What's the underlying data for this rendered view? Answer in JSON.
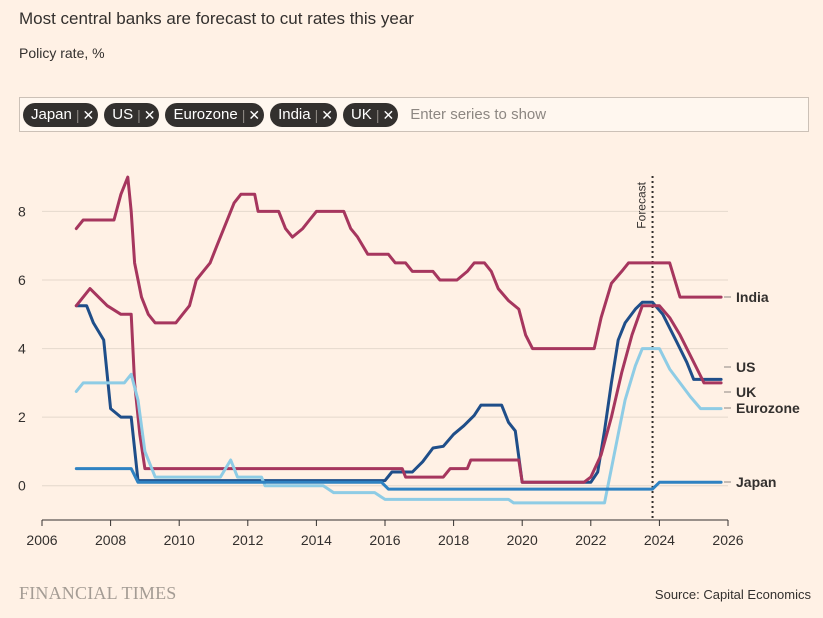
{
  "header": {
    "title": "Most central banks are forecast to cut rates this year",
    "subtitle": "Policy rate, %"
  },
  "selector": {
    "chips": [
      {
        "label": "Japan"
      },
      {
        "label": "US"
      },
      {
        "label": "Eurozone"
      },
      {
        "label": "India"
      },
      {
        "label": "UK"
      }
    ],
    "remove_glyph": "✕",
    "placeholder": "Enter series to show"
  },
  "footer": {
    "brand": "FINANCIAL TIMES",
    "source": "Source: Capital Economics"
  },
  "chart_data": {
    "type": "line",
    "title": "Most central banks are forecast to cut rates this year",
    "ylabel": "Policy rate, %",
    "xlim": [
      2006,
      2026
    ],
    "ylim": [
      -1,
      9.5
    ],
    "x_ticks": [
      2006,
      2008,
      2010,
      2012,
      2014,
      2016,
      2018,
      2020,
      2022,
      2024,
      2026
    ],
    "y_ticks": [
      0,
      2,
      4,
      6,
      8
    ],
    "grid": "horizontal",
    "annotation": {
      "label": "Forecast",
      "x": 2023.8
    },
    "series": [
      {
        "name": "India",
        "label": "India",
        "color": "#a6365e",
        "points": [
          [
            2007.0,
            7.5
          ],
          [
            2007.2,
            7.75
          ],
          [
            2007.5,
            7.75
          ],
          [
            2008.1,
            7.75
          ],
          [
            2008.3,
            8.5
          ],
          [
            2008.5,
            9.0
          ],
          [
            2008.6,
            8.0
          ],
          [
            2008.7,
            6.5
          ],
          [
            2008.9,
            5.5
          ],
          [
            2009.1,
            5.0
          ],
          [
            2009.3,
            4.75
          ],
          [
            2009.9,
            4.75
          ],
          [
            2010.1,
            5.0
          ],
          [
            2010.3,
            5.25
          ],
          [
            2010.5,
            6.0
          ],
          [
            2010.7,
            6.25
          ],
          [
            2010.9,
            6.5
          ],
          [
            2011.1,
            7.0
          ],
          [
            2011.3,
            7.5
          ],
          [
            2011.6,
            8.25
          ],
          [
            2011.8,
            8.5
          ],
          [
            2012.2,
            8.5
          ],
          [
            2012.3,
            8.0
          ],
          [
            2012.9,
            8.0
          ],
          [
            2013.1,
            7.5
          ],
          [
            2013.3,
            7.25
          ],
          [
            2013.6,
            7.5
          ],
          [
            2013.8,
            7.75
          ],
          [
            2014.0,
            8.0
          ],
          [
            2014.8,
            8.0
          ],
          [
            2015.0,
            7.5
          ],
          [
            2015.2,
            7.25
          ],
          [
            2015.5,
            6.75
          ],
          [
            2016.1,
            6.75
          ],
          [
            2016.3,
            6.5
          ],
          [
            2016.6,
            6.5
          ],
          [
            2016.8,
            6.25
          ],
          [
            2017.4,
            6.25
          ],
          [
            2017.6,
            6.0
          ],
          [
            2018.1,
            6.0
          ],
          [
            2018.4,
            6.25
          ],
          [
            2018.6,
            6.5
          ],
          [
            2018.9,
            6.5
          ],
          [
            2019.1,
            6.25
          ],
          [
            2019.3,
            5.75
          ],
          [
            2019.6,
            5.4
          ],
          [
            2019.9,
            5.15
          ],
          [
            2020.1,
            4.4
          ],
          [
            2020.3,
            4.0
          ],
          [
            2022.1,
            4.0
          ],
          [
            2022.3,
            4.9
          ],
          [
            2022.6,
            5.9
          ],
          [
            2022.9,
            6.25
          ],
          [
            2023.1,
            6.5
          ],
          [
            2024.3,
            6.5
          ],
          [
            2024.6,
            5.5
          ],
          [
            2025.8,
            5.5
          ]
        ]
      },
      {
        "name": "US",
        "label": "US",
        "color": "#1f4e89",
        "points": [
          [
            2007.0,
            5.25
          ],
          [
            2007.3,
            5.25
          ],
          [
            2007.5,
            4.75
          ],
          [
            2007.8,
            4.25
          ],
          [
            2008.0,
            2.25
          ],
          [
            2008.3,
            2.0
          ],
          [
            2008.6,
            2.0
          ],
          [
            2008.8,
            0.15
          ],
          [
            2016.0,
            0.15
          ],
          [
            2016.2,
            0.4
          ],
          [
            2016.8,
            0.4
          ],
          [
            2017.1,
            0.7
          ],
          [
            2017.4,
            1.1
          ],
          [
            2017.7,
            1.15
          ],
          [
            2018.0,
            1.5
          ],
          [
            2018.3,
            1.75
          ],
          [
            2018.6,
            2.05
          ],
          [
            2018.8,
            2.35
          ],
          [
            2019.4,
            2.35
          ],
          [
            2019.6,
            1.85
          ],
          [
            2019.8,
            1.6
          ],
          [
            2020.0,
            0.1
          ],
          [
            2022.0,
            0.1
          ],
          [
            2022.2,
            0.4
          ],
          [
            2022.4,
            1.6
          ],
          [
            2022.6,
            3.0
          ],
          [
            2022.8,
            4.25
          ],
          [
            2023.0,
            4.75
          ],
          [
            2023.3,
            5.15
          ],
          [
            2023.5,
            5.35
          ],
          [
            2023.8,
            5.35
          ],
          [
            2024.1,
            5.0
          ],
          [
            2024.5,
            4.2
          ],
          [
            2024.8,
            3.6
          ],
          [
            2025.0,
            3.1
          ],
          [
            2025.8,
            3.1
          ]
        ]
      },
      {
        "name": "UK",
        "label": "UK",
        "color": "#a6365e",
        "points": [
          [
            2007.0,
            5.25
          ],
          [
            2007.4,
            5.75
          ],
          [
            2007.9,
            5.25
          ],
          [
            2008.3,
            5.0
          ],
          [
            2008.6,
            5.0
          ],
          [
            2008.7,
            3.0
          ],
          [
            2008.85,
            1.5
          ],
          [
            2009.0,
            0.5
          ],
          [
            2016.5,
            0.5
          ],
          [
            2016.6,
            0.25
          ],
          [
            2017.7,
            0.25
          ],
          [
            2017.9,
            0.5
          ],
          [
            2018.4,
            0.5
          ],
          [
            2018.5,
            0.75
          ],
          [
            2019.9,
            0.75
          ],
          [
            2020.0,
            0.1
          ],
          [
            2021.8,
            0.1
          ],
          [
            2022.0,
            0.25
          ],
          [
            2022.3,
            0.9
          ],
          [
            2022.6,
            2.0
          ],
          [
            2022.9,
            3.3
          ],
          [
            2023.2,
            4.4
          ],
          [
            2023.5,
            5.25
          ],
          [
            2024.0,
            5.25
          ],
          [
            2024.3,
            4.9
          ],
          [
            2024.6,
            4.4
          ],
          [
            2024.9,
            3.8
          ],
          [
            2025.2,
            3.2
          ],
          [
            2025.3,
            3.0
          ],
          [
            2025.8,
            3.0
          ]
        ]
      },
      {
        "name": "Eurozone",
        "label": "Eurozone",
        "color": "#8ecce5",
        "points": [
          [
            2007.0,
            2.75
          ],
          [
            2007.2,
            3.0
          ],
          [
            2008.4,
            3.0
          ],
          [
            2008.6,
            3.25
          ],
          [
            2008.8,
            2.5
          ],
          [
            2009.0,
            1.0
          ],
          [
            2009.3,
            0.25
          ],
          [
            2011.2,
            0.25
          ],
          [
            2011.5,
            0.75
          ],
          [
            2011.7,
            0.25
          ],
          [
            2012.4,
            0.25
          ],
          [
            2012.5,
            0.0
          ],
          [
            2014.2,
            0.0
          ],
          [
            2014.5,
            -0.2
          ],
          [
            2015.7,
            -0.2
          ],
          [
            2016.0,
            -0.4
          ],
          [
            2019.6,
            -0.4
          ],
          [
            2019.75,
            -0.5
          ],
          [
            2022.4,
            -0.5
          ],
          [
            2022.6,
            0.5
          ],
          [
            2022.8,
            1.5
          ],
          [
            2023.0,
            2.5
          ],
          [
            2023.3,
            3.5
          ],
          [
            2023.5,
            4.0
          ],
          [
            2024.0,
            4.0
          ],
          [
            2024.3,
            3.4
          ],
          [
            2024.6,
            3.0
          ],
          [
            2024.9,
            2.6
          ],
          [
            2025.2,
            2.25
          ],
          [
            2025.8,
            2.25
          ]
        ]
      },
      {
        "name": "Japan",
        "label": "Japan",
        "color": "#2f82c2",
        "points": [
          [
            2007.0,
            0.5
          ],
          [
            2008.6,
            0.5
          ],
          [
            2008.8,
            0.1
          ],
          [
            2015.9,
            0.1
          ],
          [
            2016.1,
            -0.1
          ],
          [
            2023.8,
            -0.1
          ],
          [
            2024.0,
            0.1
          ],
          [
            2025.8,
            0.1
          ]
        ]
      }
    ],
    "end_labels": [
      {
        "text": "India",
        "value": 5.5,
        "color": "#33302e"
      },
      {
        "text": "US",
        "value": 3.4,
        "color": "#33302e"
      },
      {
        "text": "UK",
        "value": 2.75,
        "color": "#33302e"
      },
      {
        "text": "Eurozone",
        "value": 2.25,
        "color": "#33302e"
      },
      {
        "text": "Japan",
        "value": 0.1,
        "color": "#33302e"
      }
    ]
  }
}
